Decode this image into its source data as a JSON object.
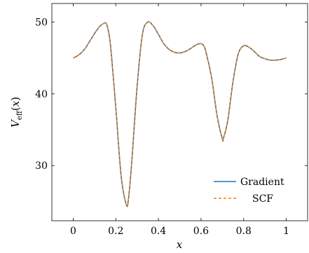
{
  "chart_data": {
    "type": "line",
    "xlabel": "x",
    "ylabel": {
      "main": "V",
      "sub": "eff",
      "open": "(",
      "var": "x",
      "close": ")"
    },
    "xlim": [
      -0.1,
      1.1
    ],
    "ylim": [
      22.3,
      52.6
    ],
    "xticks": [
      "0",
      "0.2",
      "0.4",
      "0.6",
      "0.8",
      "1"
    ],
    "xtick_values": [
      0,
      0.2,
      0.4,
      0.6,
      0.8,
      1
    ],
    "yticks": [
      "30",
      "40",
      "50"
    ],
    "ytick_values": [
      30,
      40,
      50
    ],
    "grid": false,
    "legend_position": "lower-right",
    "series": [
      {
        "name": "Gradient",
        "color": "#1f77b4",
        "style": "solid",
        "x": [
          0,
          0.025,
          0.05,
          0.075,
          0.1,
          0.125,
          0.15,
          0.16,
          0.175,
          0.2,
          0.225,
          0.25,
          0.26,
          0.275,
          0.3,
          0.325,
          0.35,
          0.375,
          0.4,
          0.425,
          0.45,
          0.475,
          0.5,
          0.525,
          0.55,
          0.575,
          0.6,
          0.615,
          0.625,
          0.65,
          0.675,
          0.7,
          0.705,
          0.725,
          0.75,
          0.775,
          0.8,
          0.825,
          0.85,
          0.875,
          0.9,
          0.925,
          0.95,
          0.975,
          1
        ],
        "y": [
          45.0,
          45.4,
          46.1,
          47.2,
          48.4,
          49.4,
          49.9,
          49.4,
          46.8,
          38.1,
          28.6,
          24.5,
          25.5,
          30.5,
          41.0,
          48.3,
          50.0,
          49.5,
          48.3,
          47.0,
          46.2,
          45.8,
          45.7,
          45.9,
          46.3,
          46.8,
          47.0,
          46.6,
          45.6,
          42.2,
          37.0,
          33.7,
          33.8,
          36.2,
          41.7,
          45.6,
          46.7,
          46.5,
          45.9,
          45.2,
          44.9,
          44.7,
          44.7,
          44.8,
          45.0
        ]
      },
      {
        "name": "SCF",
        "color": "#ff7f0e",
        "style": "dashed",
        "x": [
          0,
          0.025,
          0.05,
          0.075,
          0.1,
          0.125,
          0.15,
          0.16,
          0.175,
          0.2,
          0.225,
          0.25,
          0.26,
          0.275,
          0.3,
          0.325,
          0.35,
          0.375,
          0.4,
          0.425,
          0.45,
          0.475,
          0.5,
          0.525,
          0.55,
          0.575,
          0.6,
          0.615,
          0.625,
          0.65,
          0.675,
          0.7,
          0.705,
          0.725,
          0.75,
          0.775,
          0.8,
          0.825,
          0.85,
          0.875,
          0.9,
          0.925,
          0.95,
          0.975,
          1
        ],
        "y": [
          45.0,
          45.4,
          46.1,
          47.2,
          48.4,
          49.4,
          49.9,
          49.4,
          46.8,
          38.1,
          28.6,
          24.5,
          25.5,
          30.5,
          41.0,
          48.3,
          50.0,
          49.5,
          48.3,
          47.0,
          46.2,
          45.8,
          45.7,
          45.9,
          46.3,
          46.8,
          47.0,
          46.6,
          45.6,
          42.2,
          37.0,
          33.7,
          33.8,
          36.2,
          41.7,
          45.6,
          46.7,
          46.5,
          45.9,
          45.2,
          44.9,
          44.7,
          44.7,
          44.8,
          45.0
        ]
      }
    ]
  }
}
